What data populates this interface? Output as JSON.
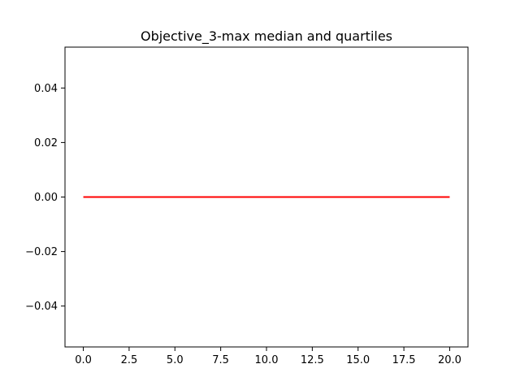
{
  "chart_data": {
    "type": "line",
    "title": "Objective_3-max median and quartiles",
    "xlabel": "",
    "ylabel": "",
    "xlim": [
      -1,
      21
    ],
    "ylim": [
      -0.055,
      0.055
    ],
    "xticks": [
      0.0,
      2.5,
      5.0,
      7.5,
      10.0,
      12.5,
      15.0,
      17.5,
      20.0
    ],
    "xtick_labels": [
      "0.0",
      "2.5",
      "5.0",
      "7.5",
      "10.0",
      "12.5",
      "15.0",
      "17.5",
      "20.0"
    ],
    "yticks": [
      -0.04,
      -0.02,
      0.0,
      0.02,
      0.04
    ],
    "ytick_labels": [
      "−0.04",
      "−0.02",
      "0.00",
      "0.02",
      "0.04"
    ],
    "grid": false,
    "series": [
      {
        "color": "#ff0000",
        "x": [
          0,
          20
        ],
        "y": [
          0,
          0
        ]
      }
    ]
  }
}
